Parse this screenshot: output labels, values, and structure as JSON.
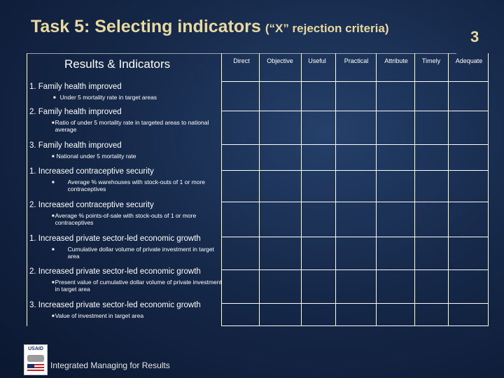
{
  "title": {
    "main": "Task 5: Selecting indicators",
    "sub": "(“X” rejection criteria)"
  },
  "slide_number": "3",
  "table": {
    "results_header": "Results & Indicators",
    "criteria": [
      "Direct",
      "Objective",
      "Useful",
      "Practical",
      "Attribute",
      "Timely",
      "Adequate"
    ],
    "rows": [
      {
        "title": "1. Family health improved",
        "indicator": "Under 5 mortality rate in target areas"
      },
      {
        "title": "2. Family health improved",
        "indicator": "Ratio of under 5 mortality rate in targeted areas to national average"
      },
      {
        "title": "3. Family health improved",
        "indicator": "National under 5 mortality rate"
      },
      {
        "title": "1. Increased contraceptive security",
        "indicator": "Average % warehouses with stock-outs of 1 or more contraceptives"
      },
      {
        "title": "2. Increased contraceptive security",
        "indicator": "Average % points-of-sale with stock-outs of 1 or more contraceptives"
      },
      {
        "title": "1. Increased private sector-led economic growth",
        "indicator": "Cumulative dollar volume of private investment in target area"
      },
      {
        "title": "2. Increased private sector-led economic growth",
        "indicator": "Present value of cumulative dollar volume of private investment in target area"
      },
      {
        "title": "3. Increased private sector-led economic growth",
        "indicator": "Value of investment in target area"
      }
    ]
  },
  "footer": {
    "logo_text": "USAID",
    "text": "Integrated Managing for Results"
  }
}
